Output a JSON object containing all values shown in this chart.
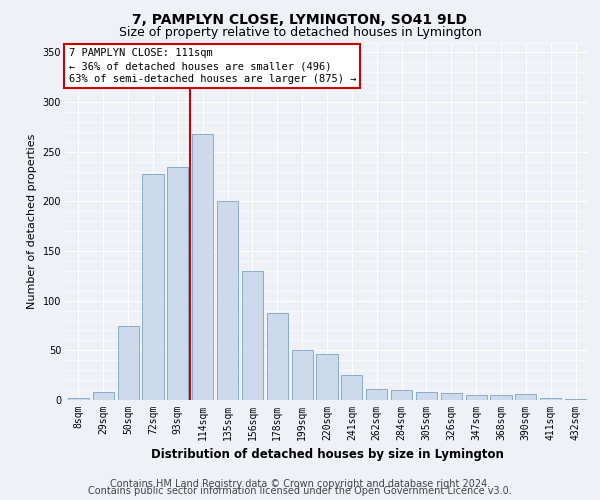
{
  "title": "7, PAMPLYN CLOSE, LYMINGTON, SO41 9LD",
  "subtitle": "Size of property relative to detached houses in Lymington",
  "xlabel": "Distribution of detached houses by size in Lymington",
  "ylabel": "Number of detached properties",
  "bar_labels": [
    "8sqm",
    "29sqm",
    "50sqm",
    "72sqm",
    "93sqm",
    "114sqm",
    "135sqm",
    "156sqm",
    "178sqm",
    "199sqm",
    "220sqm",
    "241sqm",
    "262sqm",
    "284sqm",
    "305sqm",
    "326sqm",
    "347sqm",
    "368sqm",
    "390sqm",
    "411sqm",
    "432sqm"
  ],
  "bar_values": [
    2,
    8,
    75,
    228,
    235,
    268,
    200,
    130,
    88,
    50,
    46,
    25,
    11,
    10,
    8,
    7,
    5,
    5,
    6,
    2,
    1
  ],
  "bar_color": "#ccdaeb",
  "bar_edge_color": "#7ba3c8",
  "vline_x_index": 5,
  "vline_color": "#cc0000",
  "ylim": [
    0,
    360
  ],
  "yticks": [
    0,
    50,
    100,
    150,
    200,
    250,
    300,
    350
  ],
  "annotation_text": "7 PAMPLYN CLOSE: 111sqm\n← 36% of detached houses are smaller (496)\n63% of semi-detached houses are larger (875) →",
  "annotation_box_color": "#ffffff",
  "annotation_box_edge": "#cc0000",
  "footer_line1": "Contains HM Land Registry data © Crown copyright and database right 2024.",
  "footer_line2": "Contains public sector information licensed under the Open Government Licence v3.0.",
  "bg_color": "#eef2f7",
  "plot_bg_color": "#eef2f7",
  "grid_color": "#ffffff",
  "title_fontsize": 10,
  "subtitle_fontsize": 9,
  "footer_fontsize": 7,
  "ylabel_fontsize": 8,
  "xlabel_fontsize": 8.5,
  "annotation_fontsize": 7.5,
  "tick_fontsize": 7
}
